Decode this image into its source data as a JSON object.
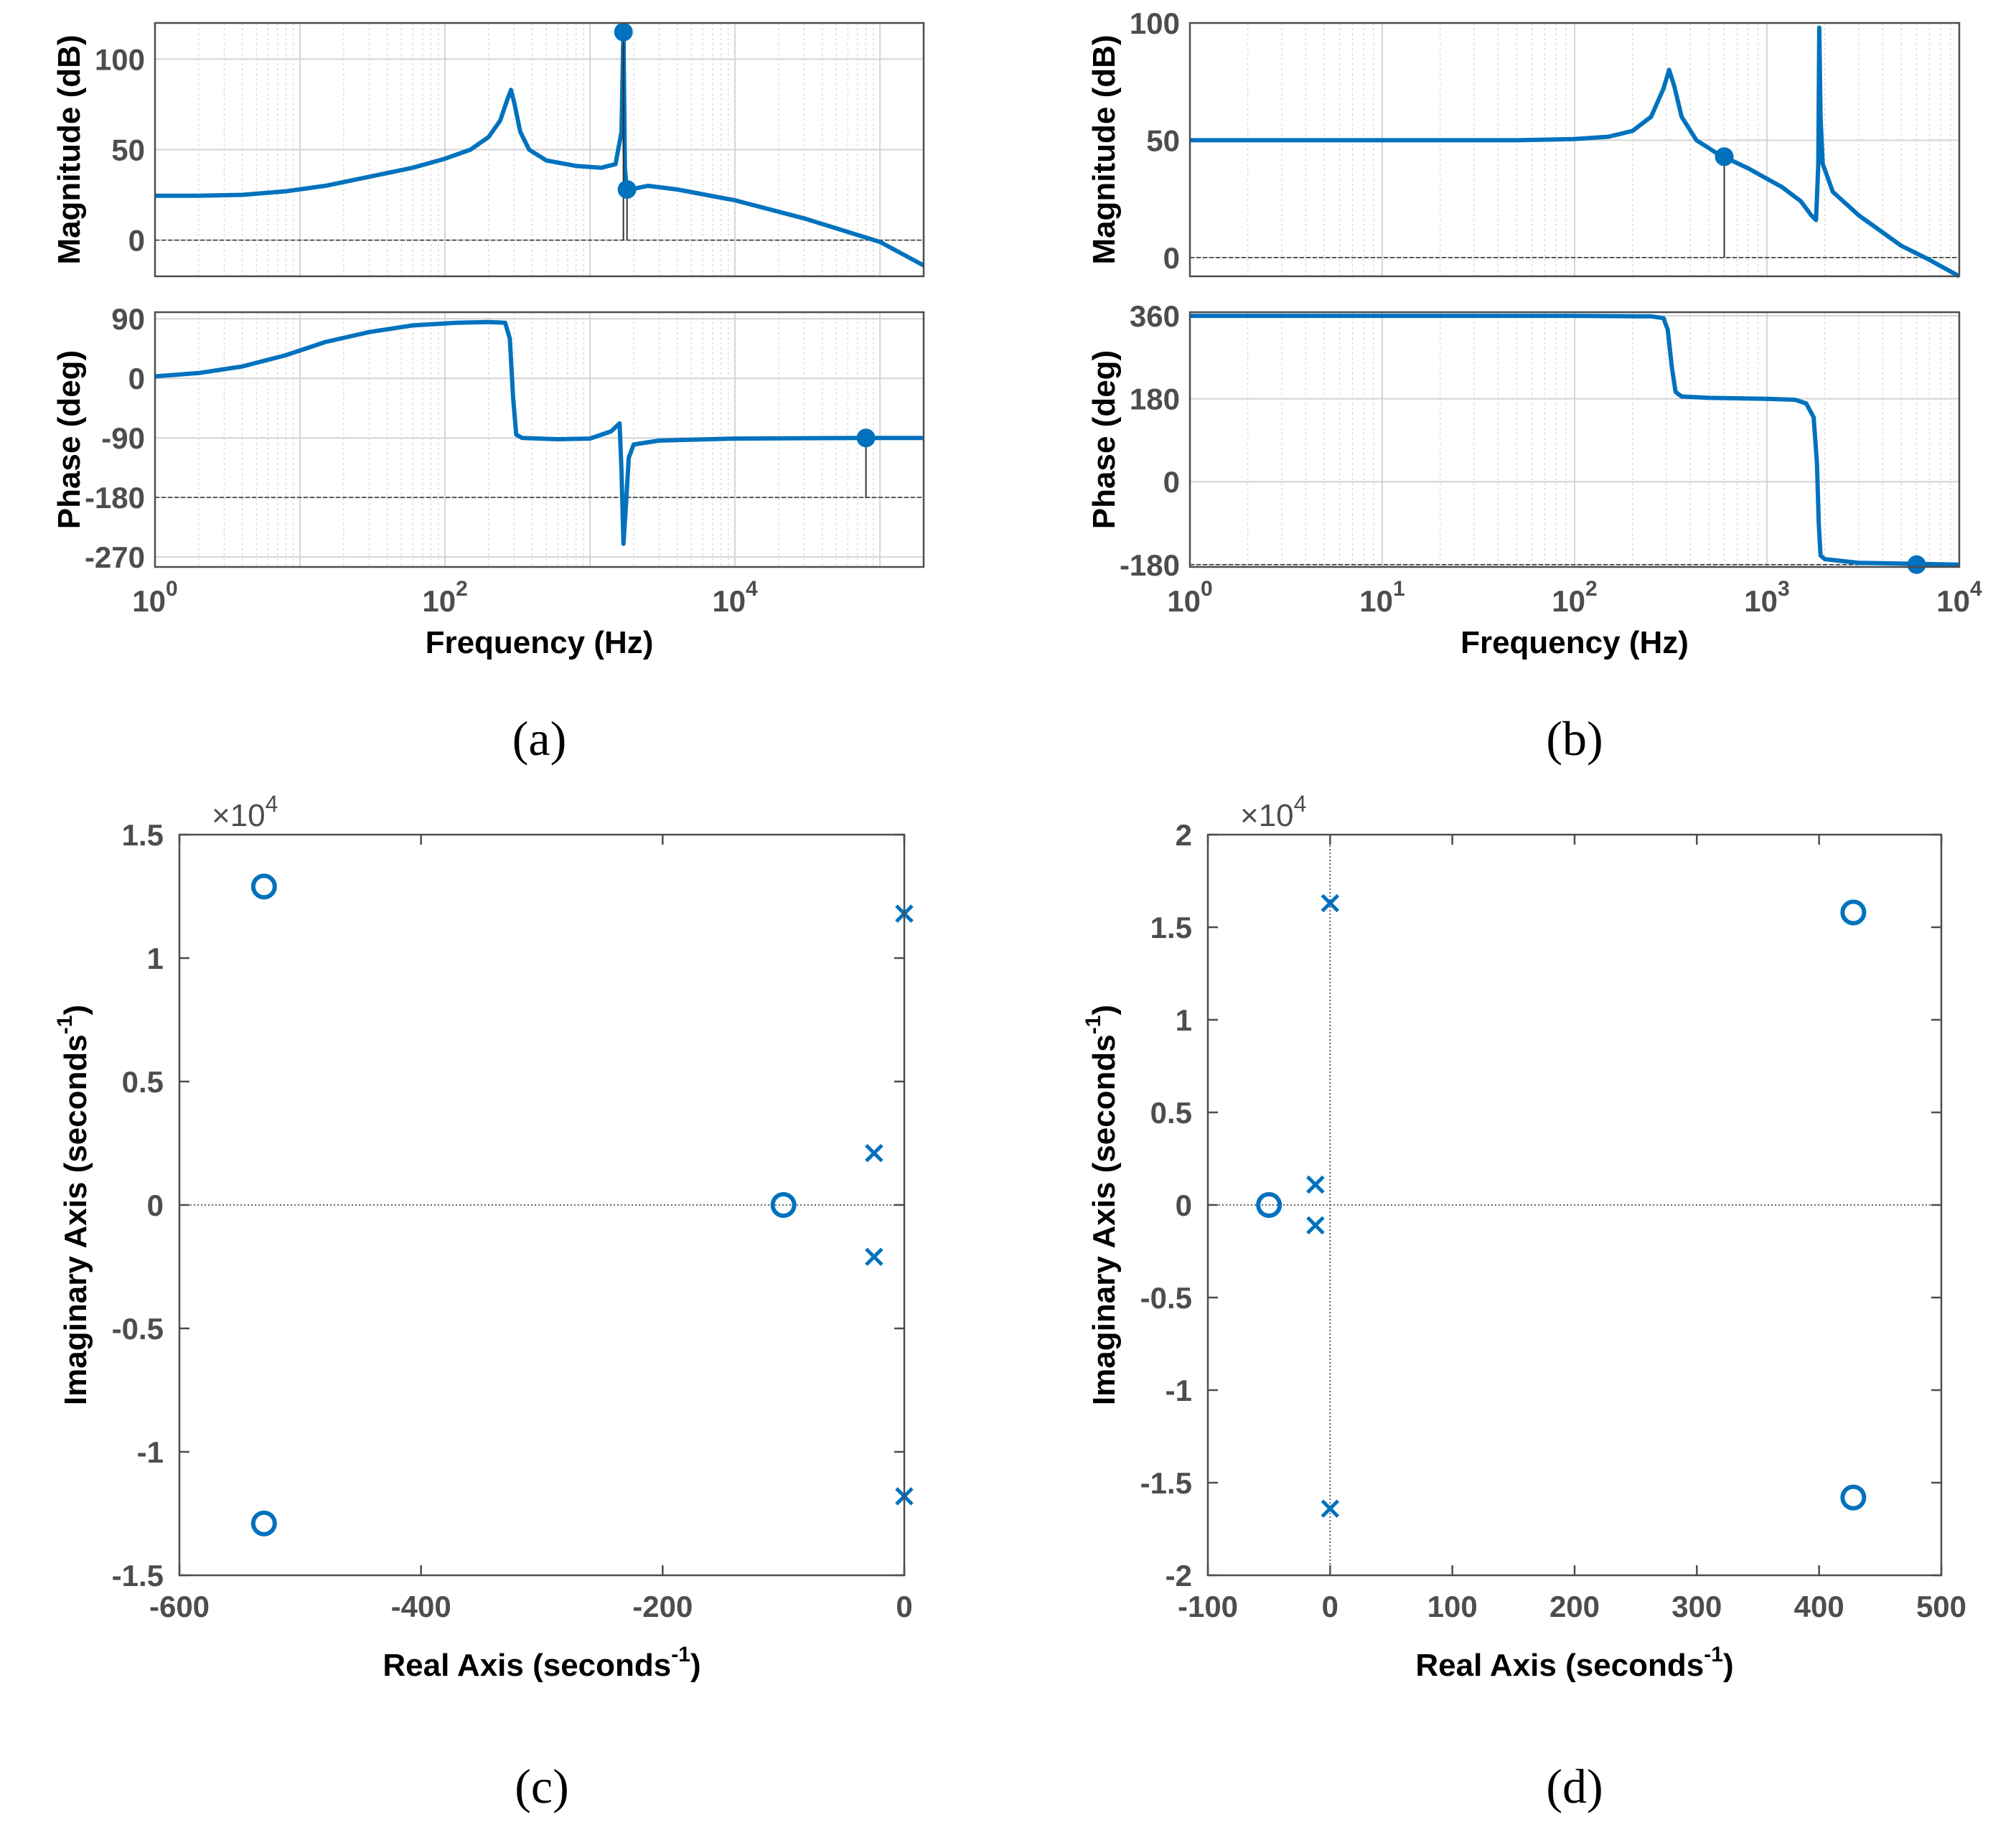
{
  "chart_data": [
    {
      "id": "a",
      "type": "bode",
      "caption": "(a)",
      "xlabel": "Frequency  (Hz)",
      "xscale": "log",
      "xlim": [
        1,
        200000
      ],
      "x_ticks": [
        {
          "base": "10",
          "exp": "0",
          "v": 1
        },
        {
          "base": "10",
          "exp": "2",
          "v": 100
        },
        {
          "base": "10",
          "exp": "4",
          "v": 10000
        }
      ],
      "magnitude": {
        "ylabel": "Magnitude (dB)",
        "ylim": [
          -20,
          120
        ],
        "ticks": [
          0,
          50,
          100
        ],
        "reference_line": 0,
        "curve": [
          [
            1,
            24.5
          ],
          [
            2,
            24.5
          ],
          [
            4,
            25
          ],
          [
            8,
            27
          ],
          [
            15,
            30
          ],
          [
            30,
            35
          ],
          [
            60,
            40
          ],
          [
            100,
            45
          ],
          [
            150,
            50
          ],
          [
            200,
            57
          ],
          [
            240,
            66
          ],
          [
            270,
            78
          ],
          [
            285,
            83
          ],
          [
            300,
            76
          ],
          [
            330,
            60
          ],
          [
            380,
            50
          ],
          [
            500,
            44
          ],
          [
            800,
            41
          ],
          [
            1200,
            40
          ],
          [
            1500,
            42
          ],
          [
            1650,
            60
          ],
          [
            1700,
            116
          ],
          [
            1740,
            40
          ],
          [
            1800,
            26
          ],
          [
            1900,
            28
          ],
          [
            2500,
            30
          ],
          [
            4000,
            28
          ],
          [
            10000,
            22
          ],
          [
            30000,
            12
          ],
          [
            100000,
            -1
          ],
          [
            200000,
            -14
          ]
        ],
        "markers": [
          {
            "x": 1700,
            "y": 115
          },
          {
            "x": 1800,
            "y": 28
          }
        ]
      },
      "phase": {
        "ylabel": "Phase (deg)",
        "ylim": [
          -285,
          100
        ],
        "ticks": [
          90,
          0,
          -90,
          -180,
          -270
        ],
        "reference_line": -180,
        "curve": [
          [
            1,
            3
          ],
          [
            2,
            8
          ],
          [
            4,
            18
          ],
          [
            8,
            35
          ],
          [
            15,
            55
          ],
          [
            30,
            70
          ],
          [
            60,
            80
          ],
          [
            120,
            84
          ],
          [
            200,
            85
          ],
          [
            260,
            84
          ],
          [
            280,
            60
          ],
          [
            295,
            -30
          ],
          [
            310,
            -85
          ],
          [
            340,
            -90
          ],
          [
            600,
            -92
          ],
          [
            1000,
            -91
          ],
          [
            1400,
            -80
          ],
          [
            1600,
            -68
          ],
          [
            1650,
            -140
          ],
          [
            1700,
            -250
          ],
          [
            1760,
            -200
          ],
          [
            1850,
            -120
          ],
          [
            2000,
            -100
          ],
          [
            3000,
            -94
          ],
          [
            10000,
            -91
          ],
          [
            80000,
            -90
          ],
          [
            200000,
            -90
          ]
        ],
        "markers": [
          {
            "x": 80000,
            "y": -90
          }
        ]
      }
    },
    {
      "id": "b",
      "type": "bode",
      "caption": "(b)",
      "xlabel": "Frequency  (Hz)",
      "xscale": "log",
      "xlim": [
        1,
        10000
      ],
      "x_ticks": [
        {
          "base": "10",
          "exp": "0",
          "v": 1
        },
        {
          "base": "10",
          "exp": "1",
          "v": 10
        },
        {
          "base": "10",
          "exp": "2",
          "v": 100
        },
        {
          "base": "10",
          "exp": "3",
          "v": 1000
        },
        {
          "base": "10",
          "exp": "4",
          "v": 10000
        }
      ],
      "magnitude": {
        "ylabel": "Magnitude (dB)",
        "ylim": [
          -8,
          100
        ],
        "ticks": [
          0,
          50,
          100
        ],
        "reference_line": 0,
        "curve": [
          [
            1,
            50
          ],
          [
            10,
            50
          ],
          [
            50,
            50
          ],
          [
            100,
            50.5
          ],
          [
            150,
            51.5
          ],
          [
            200,
            54
          ],
          [
            250,
            60
          ],
          [
            290,
            72
          ],
          [
            310,
            80
          ],
          [
            330,
            73
          ],
          [
            360,
            60
          ],
          [
            430,
            50
          ],
          [
            560,
            44
          ],
          [
            800,
            38
          ],
          [
            1200,
            30
          ],
          [
            1500,
            24
          ],
          [
            1700,
            18
          ],
          [
            1800,
            16
          ],
          [
            1850,
            40
          ],
          [
            1870,
            98
          ],
          [
            1900,
            60
          ],
          [
            1950,
            40
          ],
          [
            2200,
            28
          ],
          [
            3000,
            18
          ],
          [
            5000,
            5
          ],
          [
            7000,
            -1
          ],
          [
            10000,
            -8
          ]
        ],
        "markers": [
          {
            "x": 600,
            "y": 43
          }
        ]
      },
      "phase": {
        "ylabel": "Phase (deg)",
        "ylim": [
          -185,
          368
        ],
        "ticks": [
          360,
          180,
          0,
          -180
        ],
        "reference_line": -180,
        "curve": [
          [
            1,
            360
          ],
          [
            100,
            360
          ],
          [
            250,
            359
          ],
          [
            290,
            355
          ],
          [
            305,
            330
          ],
          [
            320,
            250
          ],
          [
            335,
            195
          ],
          [
            360,
            185
          ],
          [
            500,
            182
          ],
          [
            1000,
            180
          ],
          [
            1400,
            178
          ],
          [
            1600,
            170
          ],
          [
            1750,
            140
          ],
          [
            1820,
            40
          ],
          [
            1860,
            -90
          ],
          [
            1900,
            -160
          ],
          [
            2000,
            -168
          ],
          [
            3000,
            -176
          ],
          [
            10000,
            -180
          ]
        ],
        "markers": [
          {
            "x": 6000,
            "y": -180
          }
        ]
      }
    },
    {
      "id": "c",
      "type": "pole-zero",
      "caption": "(c)",
      "xlabel": "Real Axis (seconds",
      "ylabel": "Imaginary Axis (seconds",
      "unit_exp": "-1",
      "y_multiplier": "×10",
      "y_multiplier_exp": "4",
      "xlim": [
        -600,
        0
      ],
      "ylim": [
        -1.5,
        1.5
      ],
      "x_ticks": [
        {
          "v": -600,
          "label": "-600"
        },
        {
          "v": -400,
          "label": "-400"
        },
        {
          "v": -200,
          "label": "-200"
        },
        {
          "v": 0,
          "label": "0"
        }
      ],
      "y_ticks": [
        {
          "v": 1.5,
          "label": "1.5"
        },
        {
          "v": 1,
          "label": "1"
        },
        {
          "v": 0.5,
          "label": "0.5"
        },
        {
          "v": 0,
          "label": "0"
        },
        {
          "v": -0.5,
          "label": "-0.5"
        },
        {
          "v": -1,
          "label": "-1"
        },
        {
          "v": -1.5,
          "label": "-1.5"
        }
      ],
      "zeros": [
        {
          "re": -530,
          "im": 1.29
        },
        {
          "re": -530,
          "im": -1.29
        },
        {
          "re": -100,
          "im": 0
        }
      ],
      "poles": [
        {
          "re": 0,
          "im": 1.18
        },
        {
          "re": 0,
          "im": -1.18
        },
        {
          "re": -25,
          "im": 0.21
        },
        {
          "re": -25,
          "im": -0.21
        }
      ]
    },
    {
      "id": "d",
      "type": "pole-zero",
      "caption": "(d)",
      "xlabel": "Real Axis (seconds",
      "ylabel": "Imaginary Axis (seconds",
      "unit_exp": "-1",
      "y_multiplier": "×10",
      "y_multiplier_exp": "4",
      "xlim": [
        -100,
        500
      ],
      "ylim": [
        -2,
        2
      ],
      "x_ticks": [
        {
          "v": -100,
          "label": "-100"
        },
        {
          "v": 0,
          "label": "0"
        },
        {
          "v": 100,
          "label": "100"
        },
        {
          "v": 200,
          "label": "200"
        },
        {
          "v": 300,
          "label": "300"
        },
        {
          "v": 400,
          "label": "400"
        },
        {
          "v": 500,
          "label": "500"
        }
      ],
      "y_ticks": [
        {
          "v": 2,
          "label": "2"
        },
        {
          "v": 1.5,
          "label": "1.5"
        },
        {
          "v": 1,
          "label": "1"
        },
        {
          "v": 0.5,
          "label": "0.5"
        },
        {
          "v": 0,
          "label": "0"
        },
        {
          "v": -0.5,
          "label": "-0.5"
        },
        {
          "v": -1,
          "label": "-1"
        },
        {
          "v": -1.5,
          "label": "-1.5"
        },
        {
          "v": -2,
          "label": "-2"
        }
      ],
      "zeros": [
        {
          "re": 428,
          "im": 1.58
        },
        {
          "re": 428,
          "im": -1.58
        },
        {
          "re": -50,
          "im": 0
        }
      ],
      "poles": [
        {
          "re": 0,
          "im": 1.63
        },
        {
          "re": 0,
          "im": -1.64
        },
        {
          "re": -12,
          "im": 0.11
        },
        {
          "re": -12,
          "im": -0.11
        }
      ]
    }
  ],
  "colors": {
    "series": "#0072BD",
    "grid": "#d4d4d4",
    "axis": "#4d4d4d",
    "ref": "#333333"
  }
}
